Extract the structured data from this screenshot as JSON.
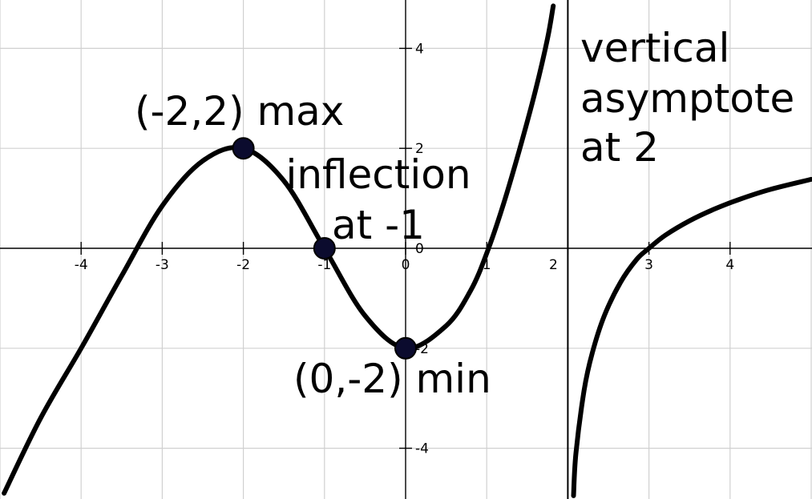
{
  "chart_data": {
    "type": "line",
    "xlim": [
      -5,
      5
    ],
    "ylim": [
      -5,
      5
    ],
    "grid": true,
    "x_ticks": [
      {
        "value": -4,
        "label": "-4"
      },
      {
        "value": -3,
        "label": "-3"
      },
      {
        "value": -2,
        "label": "-2"
      },
      {
        "value": -1,
        "label": "-1"
      },
      {
        "value": 0,
        "label": "0"
      },
      {
        "value": 1,
        "label": "1"
      },
      {
        "value": 2,
        "label": "2"
      },
      {
        "value": 3,
        "label": "3"
      },
      {
        "value": 4,
        "label": "4"
      }
    ],
    "y_ticks": [
      {
        "value": 4,
        "label": "4"
      },
      {
        "value": 2,
        "label": "2"
      },
      {
        "value": 0,
        "label": "0"
      },
      {
        "value": -2,
        "label": "-2"
      },
      {
        "value": -4,
        "label": "-4"
      }
    ],
    "series": [
      {
        "segment": "left of asymptote",
        "x": [
          -4.95,
          -4.5,
          -4.0,
          -3.5,
          -3.0,
          -2.5,
          -2.0,
          -1.5,
          -1.0,
          -0.5,
          0.0,
          0.5,
          0.8,
          1.0,
          1.2,
          1.4,
          1.6,
          1.75,
          1.82
        ],
        "y": [
          -4.9,
          -3.4,
          -2.0,
          -0.55,
          0.85,
          1.75,
          2.0,
          1.35,
          0.0,
          -1.35,
          -2.0,
          -1.55,
          -0.85,
          -0.1,
          0.85,
          1.95,
          3.15,
          4.2,
          4.85
        ]
      },
      {
        "segment": "right of asymptote",
        "x": [
          2.07,
          2.1,
          2.2,
          2.3,
          2.45,
          2.65,
          2.85,
          3.0,
          3.2,
          3.5,
          3.8,
          4.1,
          4.5,
          5.0
        ],
        "y": [
          -4.95,
          -4.1,
          -2.85,
          -2.1,
          -1.35,
          -0.68,
          -0.22,
          0.0,
          0.26,
          0.55,
          0.78,
          0.97,
          1.18,
          1.38
        ]
      }
    ],
    "vertical_asymptote": {
      "x": 2
    },
    "key_points": [
      {
        "x": -2,
        "y": 2
      },
      {
        "x": -1,
        "y": 0
      },
      {
        "x": 0,
        "y": -2
      }
    ],
    "annotations": {
      "max": "(-2,2) max",
      "inflection_line1": "inflection",
      "inflection_line2": "at -1",
      "min": "(0,-2) min",
      "asymptote_line1": "vertical",
      "asymptote_line2": "asymptote",
      "asymptote_line3": "at 2"
    }
  }
}
